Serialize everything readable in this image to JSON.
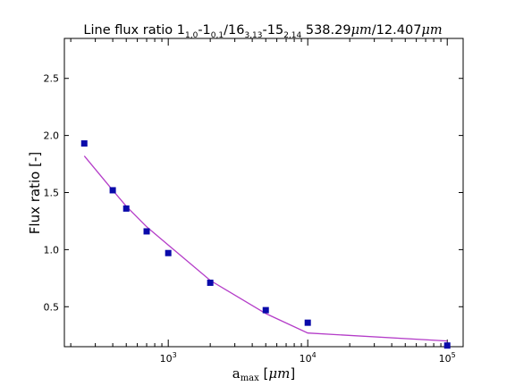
{
  "chart_data": {
    "type": "scatter",
    "title_parts": {
      "prefix": "Line flux ratio 1",
      "sub1": "1,0",
      "mid1": "-1",
      "sub2": "0,1",
      "mid2": "/16",
      "sub3": "3,13",
      "mid3": "-15",
      "sub4": "2,14",
      "suffix_num1": " 538.29",
      "unit1": "μm",
      "suffix_num2": "/12.407",
      "unit2": "μm"
    },
    "xlabel_parts": {
      "base": "a",
      "sub": "max",
      "open": " [",
      "unit": "μm",
      "close": "]"
    },
    "ylabel": "Flux ratio [-]",
    "xscale": "log",
    "xlim": [
      180,
      130000
    ],
    "ylim": [
      0.15,
      2.85
    ],
    "x_ticks": [
      {
        "value": 1000,
        "base": "10",
        "exp": "3"
      },
      {
        "value": 10000,
        "base": "10",
        "exp": "4"
      },
      {
        "value": 100000,
        "base": "10",
        "exp": "5"
      }
    ],
    "y_ticks": [
      {
        "value": 0.5,
        "label": "0.5"
      },
      {
        "value": 1.0,
        "label": "1.0"
      },
      {
        "value": 1.5,
        "label": "1.5"
      },
      {
        "value": 2.0,
        "label": "2.0"
      },
      {
        "value": 2.5,
        "label": "2.5"
      }
    ],
    "series": [
      {
        "kind": "markers",
        "color": "#0a0aaa",
        "marker": "square",
        "x": [
          250,
          400,
          500,
          700,
          1000,
          2000,
          5000,
          10000,
          100000
        ],
        "y": [
          1.93,
          1.52,
          1.36,
          1.16,
          0.97,
          0.71,
          0.47,
          0.36,
          0.16
        ]
      },
      {
        "kind": "line",
        "color": "#b43cc8",
        "x": [
          250,
          400,
          500,
          700,
          1000,
          2000,
          5000,
          10000,
          100000
        ],
        "y": [
          1.82,
          1.52,
          1.38,
          1.2,
          1.04,
          0.73,
          0.44,
          0.27,
          0.2
        ]
      }
    ],
    "grid": false,
    "legend": "none"
  }
}
